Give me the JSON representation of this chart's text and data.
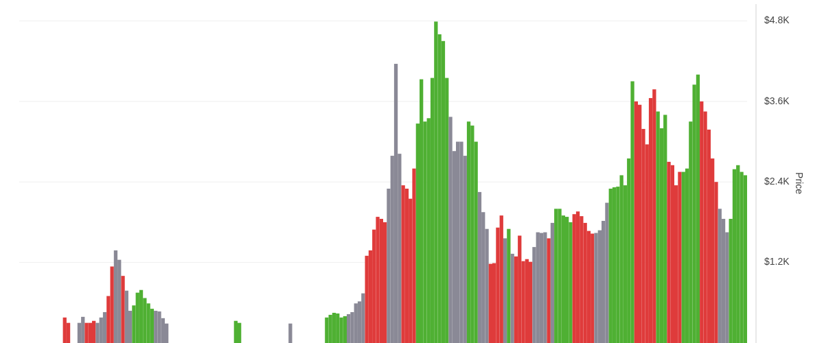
{
  "chart_data": {
    "type": "bar",
    "ylabel": "Price",
    "categories": [
      null,
      null,
      null,
      null,
      null,
      null,
      null,
      null,
      null,
      null,
      null,
      null,
      null,
      null,
      null,
      null,
      null,
      null,
      null,
      null,
      null,
      null,
      null,
      null,
      null,
      null,
      null,
      null,
      null,
      null,
      null,
      null,
      null,
      null,
      null,
      null,
      null,
      null,
      null,
      null,
      null,
      null,
      null,
      null,
      null,
      null,
      null,
      null,
      null,
      null,
      null,
      null,
      null,
      null,
      null,
      null,
      null,
      null,
      null,
      null,
      null,
      null,
      null,
      null,
      null,
      null,
      null,
      null,
      null,
      null,
      null,
      null,
      null,
      null,
      null,
      null,
      null,
      null,
      null,
      null,
      null,
      null,
      null,
      null,
      null,
      null,
      null,
      null,
      null,
      null,
      null,
      null,
      null,
      null,
      null,
      null,
      null,
      null,
      null,
      null,
      null,
      null,
      null,
      null,
      null,
      null,
      null,
      null,
      null,
      null,
      null,
      null,
      null,
      null,
      null,
      null,
      null,
      null,
      null,
      null,
      null,
      null,
      null,
      null,
      null,
      null,
      null,
      null,
      null,
      null,
      null,
      null,
      null,
      null,
      null,
      null,
      null,
      null,
      null,
      null,
      null,
      null,
      null,
      null,
      null,
      null,
      null,
      null,
      null,
      null,
      null,
      null,
      null,
      null,
      null,
      null,
      null,
      null,
      null,
      null,
      null,
      null,
      null,
      null,
      null,
      null,
      null,
      null,
      null,
      null,
      null,
      null,
      null,
      null,
      null,
      null,
      null,
      null,
      null,
      null,
      null,
      null,
      null,
      null,
      null,
      null,
      null,
      null,
      null,
      null,
      null,
      null,
      null,
      null,
      null,
      null,
      null,
      null,
      null,
      null
    ],
    "values": [
      null,
      null,
      null,
      null,
      null,
      null,
      null,
      null,
      null,
      null,
      null,
      null,
      380,
      300,
      null,
      null,
      300,
      390,
      300,
      300,
      330,
      300,
      380,
      460,
      700,
      1140,
      1380,
      1240,
      1000,
      780,
      480,
      560,
      750,
      790,
      670,
      590,
      510,
      480,
      470,
      370,
      290,
      null,
      null,
      null,
      null,
      null,
      null,
      null,
      null,
      null,
      null,
      null,
      null,
      null,
      null,
      null,
      null,
      null,
      null,
      330,
      300,
      null,
      null,
      null,
      null,
      null,
      null,
      null,
      null,
      null,
      null,
      null,
      null,
      null,
      290,
      null,
      null,
      null,
      null,
      null,
      null,
      null,
      null,
      null,
      380,
      420,
      450,
      440,
      380,
      400,
      430,
      460,
      590,
      620,
      740,
      1300,
      1380,
      1690,
      1880,
      1850,
      1800,
      2300,
      2790,
      4160,
      2820,
      2350,
      2300,
      2150,
      2600,
      3270,
      3930,
      3300,
      3350,
      3950,
      4790,
      4600,
      4500,
      3950,
      3370,
      2860,
      3000,
      3000,
      2790,
      3300,
      3240,
      3000,
      2250,
      1950,
      1700,
      1180,
      1190,
      1720,
      1900,
      1560,
      1700,
      1330,
      1290,
      1600,
      1220,
      1250,
      1210,
      1430,
      1650,
      1640,
      1650,
      1560,
      1790,
      2000,
      2000,
      1900,
      1880,
      1800,
      1920,
      1960,
      1890,
      1790,
      1670,
      1630,
      1640,
      1680,
      1820,
      2090,
      2300,
      2320,
      2330,
      2500,
      2350,
      2750,
      3900,
      3600,
      3550,
      3190,
      2960,
      3650,
      3780,
      3450,
      3200,
      3400,
      2700,
      2650,
      2350,
      2550,
      2550,
      2600,
      3300,
      3850,
      4000,
      3600,
      3450,
      3180,
      2750,
      2400,
      2000,
      1850,
      1650,
      1850,
      2590,
      2650,
      2550,
      2500
    ],
    "colors": [
      null,
      null,
      null,
      null,
      null,
      null,
      null,
      null,
      null,
      null,
      null,
      null,
      "#df3b3b",
      "#df3b3b",
      null,
      null,
      "#8a8996",
      "#8a8996",
      "#df3b3b",
      "#df3b3b",
      "#df3b3b",
      "#8a8996",
      "#8a8996",
      "#8a8996",
      "#df3b3b",
      "#df3b3b",
      "#8a8996",
      "#8a8996",
      "#df3b3b",
      "#8a8996",
      "#8a8996",
      "#4fb033",
      "#4fb033",
      "#4fb033",
      "#4fb033",
      "#4fb033",
      "#4fb033",
      "#8a8996",
      "#8a8996",
      "#8a8996",
      "#8a8996",
      null,
      null,
      null,
      null,
      null,
      null,
      null,
      null,
      null,
      null,
      null,
      null,
      null,
      null,
      null,
      null,
      null,
      null,
      "#4fb033",
      "#4fb033",
      null,
      null,
      null,
      null,
      null,
      null,
      null,
      null,
      null,
      null,
      null,
      null,
      null,
      "#8a8996",
      null,
      null,
      null,
      null,
      null,
      null,
      null,
      null,
      null,
      "#4fb033",
      "#4fb033",
      "#4fb033",
      "#4fb033",
      "#4fb033",
      "#4fb033",
      "#8a8996",
      "#8a8996",
      "#8a8996",
      "#8a8996",
      "#8a8996",
      "#df3b3b",
      "#df3b3b",
      "#df3b3b",
      "#df3b3b",
      "#df3b3b",
      "#df3b3b",
      "#8a8996",
      "#8a8996",
      "#8a8996",
      "#8a8996",
      "#df3b3b",
      "#df3b3b",
      "#df3b3b",
      "#df3b3b",
      "#4fb033",
      "#4fb033",
      "#4fb033",
      "#4fb033",
      "#4fb033",
      "#4fb033",
      "#4fb033",
      "#4fb033",
      "#4fb033",
      "#8a8996",
      "#8a8996",
      "#8a8996",
      "#8a8996",
      "#8a8996",
      "#4fb033",
      "#4fb033",
      "#4fb033",
      "#8a8996",
      "#8a8996",
      "#8a8996",
      "#df3b3b",
      "#df3b3b",
      "#df3b3b",
      "#df3b3b",
      "#8a8996",
      "#4fb033",
      "#8a8996",
      "#df3b3b",
      "#df3b3b",
      "#df3b3b",
      "#df3b3b",
      "#df3b3b",
      "#8a8996",
      "#8a8996",
      "#8a8996",
      "#8a8996",
      "#df3b3b",
      "#8a8996",
      "#4fb033",
      "#4fb033",
      "#4fb033",
      "#4fb033",
      "#4fb033",
      "#df3b3b",
      "#df3b3b",
      "#df3b3b",
      "#df3b3b",
      "#df3b3b",
      "#df3b3b",
      "#8a8996",
      "#8a8996",
      "#8a8996",
      "#8a8996",
      "#4fb033",
      "#4fb033",
      "#4fb033",
      "#4fb033",
      "#4fb033",
      "#4fb033",
      "#4fb033",
      "#df3b3b",
      "#df3b3b",
      "#df3b3b",
      "#df3b3b",
      "#df3b3b",
      "#df3b3b",
      "#4fb033",
      "#4fb033",
      "#4fb033",
      "#df3b3b",
      "#df3b3b",
      "#df3b3b",
      "#df3b3b",
      "#4fb033",
      "#4fb033",
      "#4fb033",
      "#4fb033",
      "#4fb033",
      "#df3b3b",
      "#df3b3b",
      "#df3b3b",
      "#df3b3b",
      "#df3b3b",
      "#8a8996",
      "#8a8996",
      "#8a8996",
      "#4fb033",
      "#4fb033",
      "#4fb033",
      "#4fb033",
      "#4fb033"
    ],
    "ylim": [
      0,
      5050
    ],
    "yticks": [
      {
        "value": 1200,
        "label": "$1.2K"
      },
      {
        "value": 2400,
        "label": "$2.4K"
      },
      {
        "value": 3600,
        "label": "$3.6K"
      },
      {
        "value": 4800,
        "label": "$4.8K"
      }
    ],
    "grid": "y",
    "tick_labels": "y"
  }
}
